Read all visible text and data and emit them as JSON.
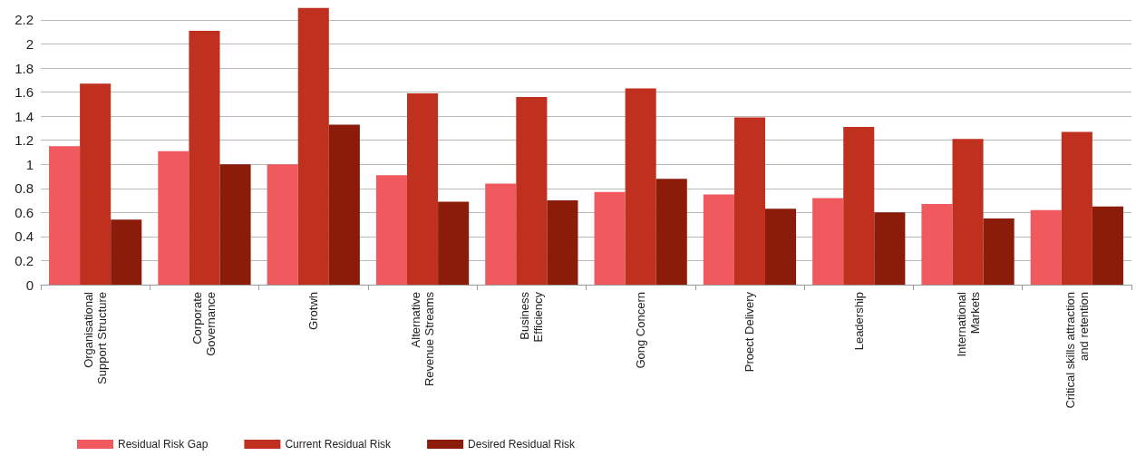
{
  "chart_data": {
    "type": "bar",
    "categories": [
      "Organisational\nSupport Structure",
      "Corporate\nGovernance",
      "Grotwh",
      "Alternative\nRevenue Streams",
      "Business\nEfficiency",
      "Gong Concern",
      "Proect Delivery",
      "Leadership",
      "International\nMarkets",
      "Critical skills attraction\nand retention"
    ],
    "series": [
      {
        "name": "Residual Risk Gap",
        "color": "#f05a5f",
        "values": [
          1.15,
          1.11,
          1.0,
          0.91,
          0.84,
          0.77,
          0.75,
          0.72,
          0.67,
          0.62
        ]
      },
      {
        "name": "Current Residual Risk",
        "color": "#c0301f",
        "values": [
          1.67,
          2.11,
          2.3,
          1.59,
          1.56,
          1.63,
          1.39,
          1.31,
          1.21,
          1.27
        ]
      },
      {
        "name": "Desired Residual Risk",
        "color": "#8b1c0a",
        "values": [
          0.54,
          1.0,
          1.33,
          0.69,
          0.7,
          0.88,
          0.63,
          0.6,
          0.55,
          0.65
        ]
      }
    ],
    "ylim": [
      0,
      2.32
    ],
    "yticks": [
      0,
      0.2,
      0.4,
      0.6,
      0.8,
      1,
      1.2,
      1.4,
      1.6,
      1.8,
      2,
      2.2
    ],
    "grid": "y",
    "legend": "bottom left"
  }
}
